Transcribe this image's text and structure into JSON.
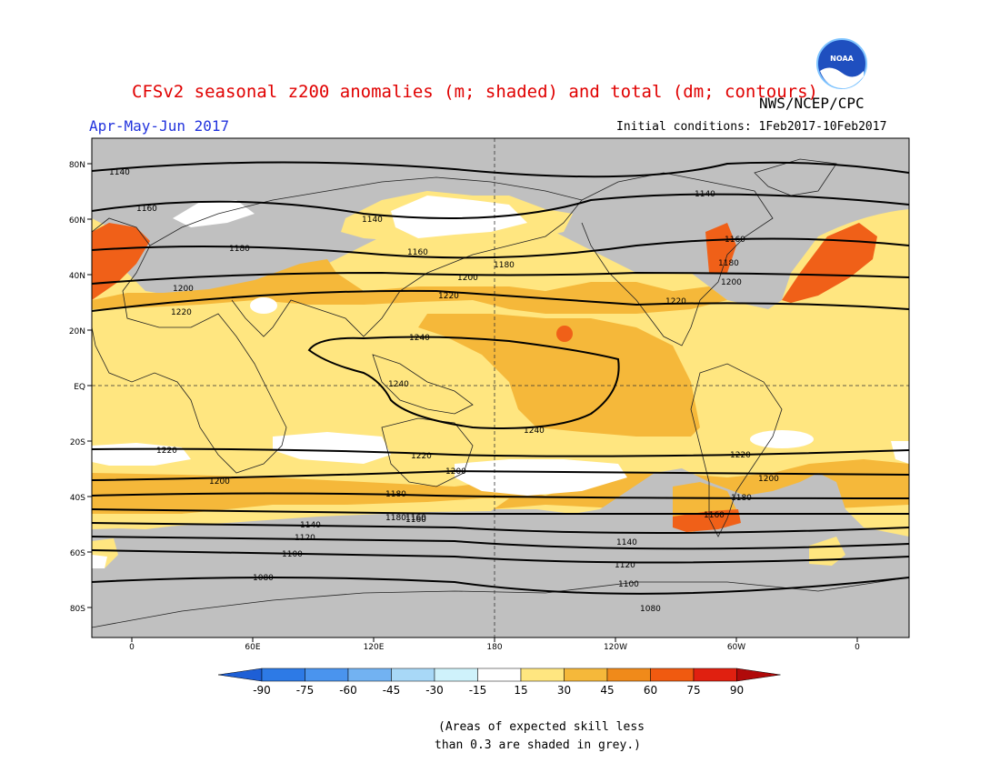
{
  "header": {
    "title": "CFSv2 seasonal z200 anomalies (m; shaded) and total (dm; contours)",
    "agency": "NWS/NCEP/CPC",
    "logo_text": "NOAA",
    "season": "Apr-May-Jun 2017",
    "initial_conditions": "Initial conditions: 1Feb2017-10Feb2017"
  },
  "map": {
    "lat_labels": [
      "80N",
      "60N",
      "40N",
      "20N",
      "EQ",
      "20S",
      "40S",
      "60S",
      "80S"
    ],
    "lon_labels": [
      "0",
      "60E",
      "120E",
      "180",
      "120W",
      "60W",
      "0"
    ],
    "contour_labels": [
      "1140",
      "1160",
      "1180",
      "1200",
      "1220",
      "1240",
      "1220",
      "1200",
      "1180",
      "1160",
      "1140",
      "1120",
      "1100",
      "1080",
      "1140",
      "1140",
      "1160",
      "1160",
      "1180",
      "1180",
      "1200",
      "1200",
      "1220",
      "1220",
      "1240",
      "1240",
      "1220",
      "1220",
      "1200",
      "1200",
      "1180",
      "1180",
      "1160",
      "1160",
      "1140",
      "1120",
      "1100",
      "1080"
    ],
    "colors": {
      "grey_low_skill": "#c0c0c0",
      "light_yellow": "#ffe680",
      "yellow_orange": "#f5b83a",
      "orange": "#f08a1a",
      "orange_red": "#f06018",
      "ocean_white": "#ffffff"
    }
  },
  "colorbar": {
    "labels": [
      "-90",
      "-75",
      "-60",
      "-45",
      "-30",
      "-15",
      "15",
      "30",
      "45",
      "60",
      "75",
      "90"
    ],
    "colors": [
      "#1e5fd6",
      "#2d7ae6",
      "#4a94ee",
      "#72b2f2",
      "#a8d8f7",
      "#cff2fb",
      "#ffffff",
      "#ffe680",
      "#f5b83a",
      "#f08a1a",
      "#f05a10",
      "#e02010",
      "#b00a0a"
    ]
  },
  "footnote": {
    "line1": "(Areas of expected skill less",
    "line2": "than 0.3 are shaded in grey.)"
  }
}
